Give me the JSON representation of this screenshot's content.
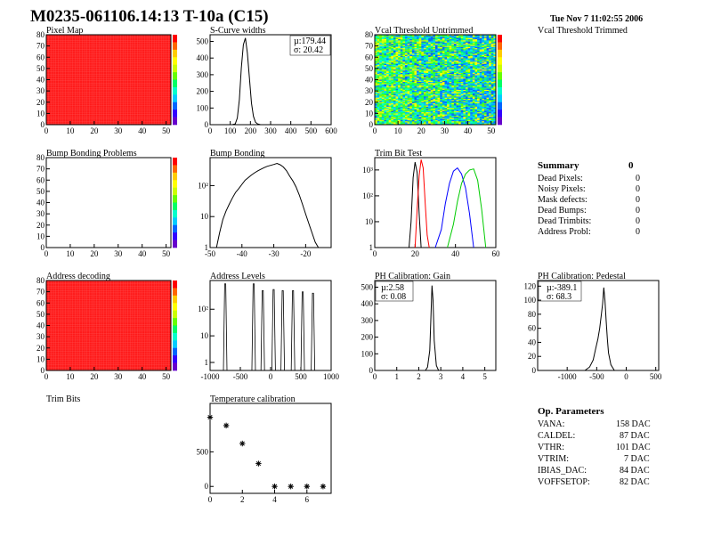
{
  "header": {
    "title": "M0235-061106.14:13 T-10a (C15)",
    "date": "Tue Nov  7 11:02:55 2006"
  },
  "colors": {
    "heatmap_red": "#ff1a1a",
    "line_black": "#000000",
    "trim_red": "#ff0000",
    "trim_blue": "#0000ff",
    "trim_green": "#00cc00"
  },
  "panels": {
    "pixel_map": {
      "title": "Pixel Map"
    },
    "scurve": {
      "title": "S-Curve widths",
      "stats": [
        "µ:179.44",
        "σ: 20.42"
      ]
    },
    "vcal_untrimmed": {
      "title": "Vcal Threshold Untrimmed"
    },
    "vcal_trimmed": {
      "title": "Vcal Threshold Trimmed"
    },
    "bump_problems": {
      "title": "Bump Bonding Problems"
    },
    "bump_bonding": {
      "title": "Bump Bonding"
    },
    "trim_bit_test": {
      "title": "Trim Bit Test"
    },
    "address_decoding": {
      "title": "Address decoding"
    },
    "address_levels": {
      "title": "Address Levels"
    },
    "ph_gain": {
      "title": "PH Calibration: Gain",
      "stats": [
        "µ:2.58",
        "σ: 0.08"
      ]
    },
    "ph_pedestal": {
      "title": "PH Calibration: Pedestal",
      "stats": [
        "µ:-389.1",
        "σ: 68.3"
      ]
    },
    "trim_bits": {
      "title": "Trim Bits"
    },
    "temperature": {
      "title": "Temperature calibration"
    }
  },
  "summary": {
    "title": "Summary",
    "total": "0",
    "rows": [
      {
        "label": "Dead Pixels:",
        "value": "0"
      },
      {
        "label": "Noisy Pixels:",
        "value": "0"
      },
      {
        "label": "Mask defects:",
        "value": "0"
      },
      {
        "label": "Dead Bumps:",
        "value": "0"
      },
      {
        "label": "Dead Trimbits:",
        "value": "0"
      },
      {
        "label": "Address Probl:",
        "value": "0"
      }
    ]
  },
  "op_parameters": {
    "title": "Op. Parameters",
    "rows": [
      {
        "label": "VANA:",
        "value": "158 DAC"
      },
      {
        "label": "CALDEL:",
        "value": "87 DAC"
      },
      {
        "label": "VTHR:",
        "value": "101 DAC"
      },
      {
        "label": "VTRIM:",
        "value": "7 DAC"
      },
      {
        "label": "IBIAS_DAC:",
        "value": "84 DAC"
      },
      {
        "label": "VOFFSETOP:",
        "value": "82 DAC"
      }
    ]
  },
  "chart_data": [
    {
      "id": "pixel_map",
      "type": "heatmap",
      "title": "Pixel Map",
      "xlim": [
        0,
        52
      ],
      "ylim": [
        0,
        80
      ],
      "xticks": [
        0,
        10,
        20,
        30,
        40,
        50
      ],
      "yticks": [
        0,
        10,
        20,
        30,
        40,
        50,
        60,
        70,
        80
      ],
      "uniform_value": "all pixels red (uniform)"
    },
    {
      "id": "scurve",
      "type": "line",
      "title": "S-Curve widths",
      "xlim": [
        0,
        600
      ],
      "ylim": [
        0,
        540
      ],
      "xticks": [
        0,
        100,
        200,
        300,
        400,
        500,
        600
      ],
      "yticks": [
        0,
        100,
        200,
        300,
        400,
        500
      ],
      "x": [
        110,
        125,
        135,
        145,
        155,
        165,
        175,
        185,
        195,
        205,
        215,
        225,
        235,
        250
      ],
      "y": [
        0,
        5,
        40,
        150,
        340,
        480,
        520,
        430,
        280,
        130,
        50,
        15,
        5,
        0
      ]
    },
    {
      "id": "vcal_untrimmed",
      "type": "heatmap",
      "title": "Vcal Threshold Untrimmed",
      "xlim": [
        0,
        52
      ],
      "ylim": [
        0,
        80
      ],
      "xticks": [
        0,
        10,
        20,
        30,
        40,
        50
      ],
      "yticks": [
        0,
        10,
        20,
        30,
        40,
        50,
        60,
        70,
        80
      ],
      "palette_range": "green-yellow-cyan with blue-dominant right half"
    },
    {
      "id": "bump_problems",
      "type": "heatmap",
      "title": "Bump Bonding Problems",
      "xlim": [
        0,
        52
      ],
      "ylim": [
        0,
        80
      ],
      "xticks": [
        0,
        10,
        20,
        30,
        40,
        50
      ],
      "yticks": [
        0,
        10,
        20,
        30,
        40,
        50,
        60,
        70,
        80
      ],
      "uniform_value": "empty"
    },
    {
      "id": "bump_bonding",
      "type": "line",
      "title": "Bump Bonding",
      "yscale": "log",
      "xlim": [
        -50,
        -12
      ],
      "ylim": [
        1,
        800
      ],
      "xticks": [
        -50,
        -40,
        -30,
        -20
      ],
      "yticks_labels": [
        "1",
        "10",
        "10²"
      ],
      "x": [
        -48,
        -47,
        -46,
        -45,
        -44,
        -43,
        -42,
        -41,
        -40,
        -39,
        -38,
        -37,
        -36,
        -35,
        -34,
        -33,
        -32,
        -31,
        -30,
        -29,
        -28,
        -27,
        -26,
        -25,
        -24,
        -23,
        -22,
        -21,
        -20,
        -19,
        -18,
        -17,
        -16
      ],
      "y": [
        1,
        3,
        8,
        15,
        25,
        40,
        60,
        80,
        110,
        150,
        180,
        220,
        260,
        300,
        340,
        380,
        420,
        450,
        480,
        520,
        470,
        400,
        300,
        200,
        140,
        90,
        50,
        25,
        12,
        6,
        3,
        1.5,
        1
      ]
    },
    {
      "id": "trim_bit_test",
      "type": "line",
      "title": "Trim Bit Test",
      "yscale": "log",
      "xlim": [
        0,
        60
      ],
      "ylim": [
        1,
        3000
      ],
      "xticks": [
        0,
        20,
        40,
        60
      ],
      "yticks_labels": [
        "1",
        "10",
        "10²",
        "10³"
      ],
      "series": [
        {
          "color": "black",
          "x": [
            17,
            18,
            19,
            20,
            21,
            22,
            23
          ],
          "y": [
            1,
            10,
            500,
            2000,
            800,
            20,
            1
          ]
        },
        {
          "color": "red",
          "x": [
            20,
            21,
            22,
            23,
            24,
            25,
            26,
            27
          ],
          "y": [
            1,
            30,
            600,
            2500,
            1200,
            50,
            3,
            1
          ]
        },
        {
          "color": "blue",
          "x": [
            30,
            33,
            35,
            37,
            39,
            41,
            43,
            45,
            47,
            49
          ],
          "y": [
            1,
            5,
            50,
            300,
            900,
            1200,
            700,
            200,
            20,
            1
          ]
        },
        {
          "color": "green",
          "x": [
            36,
            39,
            41,
            43,
            45,
            47,
            49,
            51,
            53,
            55
          ],
          "y": [
            1,
            8,
            60,
            300,
            700,
            1000,
            1100,
            400,
            30,
            1
          ]
        }
      ]
    },
    {
      "id": "address_decoding",
      "type": "heatmap",
      "title": "Address decoding",
      "xlim": [
        0,
        52
      ],
      "ylim": [
        0,
        80
      ],
      "xticks": [
        0,
        10,
        20,
        30,
        40,
        50
      ],
      "yticks": [
        0,
        10,
        20,
        30,
        40,
        50,
        60,
        70,
        80
      ],
      "uniform_value": "all pixels red (uniform)"
    },
    {
      "id": "address_levels",
      "type": "line",
      "title": "Address Levels",
      "yscale": "log",
      "xlim": [
        -1000,
        1000
      ],
      "ylim": [
        0.5,
        1200
      ],
      "xticks": [
        -1000,
        -500,
        0,
        500,
        1000
      ],
      "yticks_labels": [
        "1",
        "10",
        "10²"
      ],
      "peaks_x": [
        -750,
        -280,
        -130,
        50,
        200,
        370,
        530,
        700
      ],
      "peaks_y": [
        900,
        900,
        500,
        550,
        500,
        500,
        450,
        400
      ]
    },
    {
      "id": "ph_gain",
      "type": "line",
      "title": "PH Calibration: Gain",
      "xlim": [
        0,
        5.5
      ],
      "ylim": [
        0,
        540
      ],
      "xticks": [
        0,
        1,
        2,
        3,
        4,
        5
      ],
      "yticks": [
        0,
        100,
        200,
        300,
        400,
        500
      ],
      "x": [
        2.3,
        2.4,
        2.5,
        2.55,
        2.6,
        2.65,
        2.7,
        2.8,
        2.9
      ],
      "y": [
        0,
        20,
        120,
        320,
        510,
        420,
        180,
        30,
        0
      ]
    },
    {
      "id": "ph_pedestal",
      "type": "line",
      "title": "PH Calibration: Pedestal",
      "xlim": [
        -1500,
        550
      ],
      "ylim": [
        0,
        128
      ],
      "xticks": [
        -1000,
        -500,
        0,
        500
      ],
      "yticks": [
        0,
        20,
        40,
        60,
        80,
        100,
        120
      ],
      "x": [
        -700,
        -620,
        -560,
        -520,
        -480,
        -450,
        -420,
        -400,
        -380,
        -360,
        -340,
        -320,
        -300,
        -260,
        -200
      ],
      "y": [
        0,
        5,
        15,
        30,
        45,
        60,
        80,
        95,
        118,
        100,
        70,
        45,
        25,
        8,
        0
      ]
    },
    {
      "id": "temperature",
      "type": "scatter",
      "title": "Temperature calibration",
      "xlim": [
        0,
        7.5
      ],
      "ylim": [
        -100,
        1200
      ],
      "xticks": [
        0,
        2,
        4,
        6
      ],
      "yticks": [
        0,
        500
      ],
      "x": [
        0,
        1,
        2,
        3,
        4,
        5,
        6,
        7
      ],
      "y": [
        1000,
        880,
        620,
        330,
        0,
        0,
        0,
        0
      ]
    }
  ]
}
